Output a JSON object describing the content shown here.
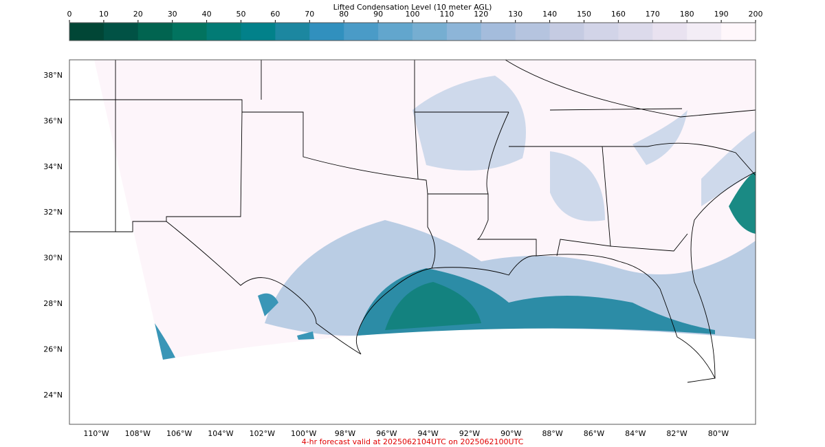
{
  "colorbar": {
    "title": "Lifted Condensation Level (10 meter AGL)",
    "ticks": [
      0,
      10,
      20,
      30,
      40,
      50,
      60,
      70,
      80,
      90,
      100,
      110,
      120,
      130,
      140,
      150,
      160,
      170,
      180,
      190,
      200
    ],
    "colors": [
      "#014636",
      "#015245",
      "#016450",
      "#02735f",
      "#027b75",
      "#02818a",
      "#1c87a0",
      "#3190be",
      "#4a9bc7",
      "#62a6cd",
      "#76aed1",
      "#8db5d8",
      "#a4bcdc",
      "#b5c4df",
      "#c5cbe2",
      "#d2d4e8",
      "#dcdaeb",
      "#e9e2f0",
      "#f3edf6",
      "#fff7fb"
    ]
  },
  "map": {
    "lat_labels": [
      "38°N",
      "36°N",
      "34°N",
      "32°N",
      "30°N",
      "28°N",
      "26°N",
      "24°N"
    ],
    "lon_labels": [
      "110°W",
      "108°W",
      "106°W",
      "104°W",
      "102°W",
      "100°W",
      "98°W",
      "96°W",
      "94°W",
      "92°W",
      "90°W",
      "88°W",
      "86°W",
      "84°W",
      "82°W",
      "80°W"
    ]
  },
  "footer": "4-hr forecast valid at 2025062104UTC on 2025062100UTC"
}
